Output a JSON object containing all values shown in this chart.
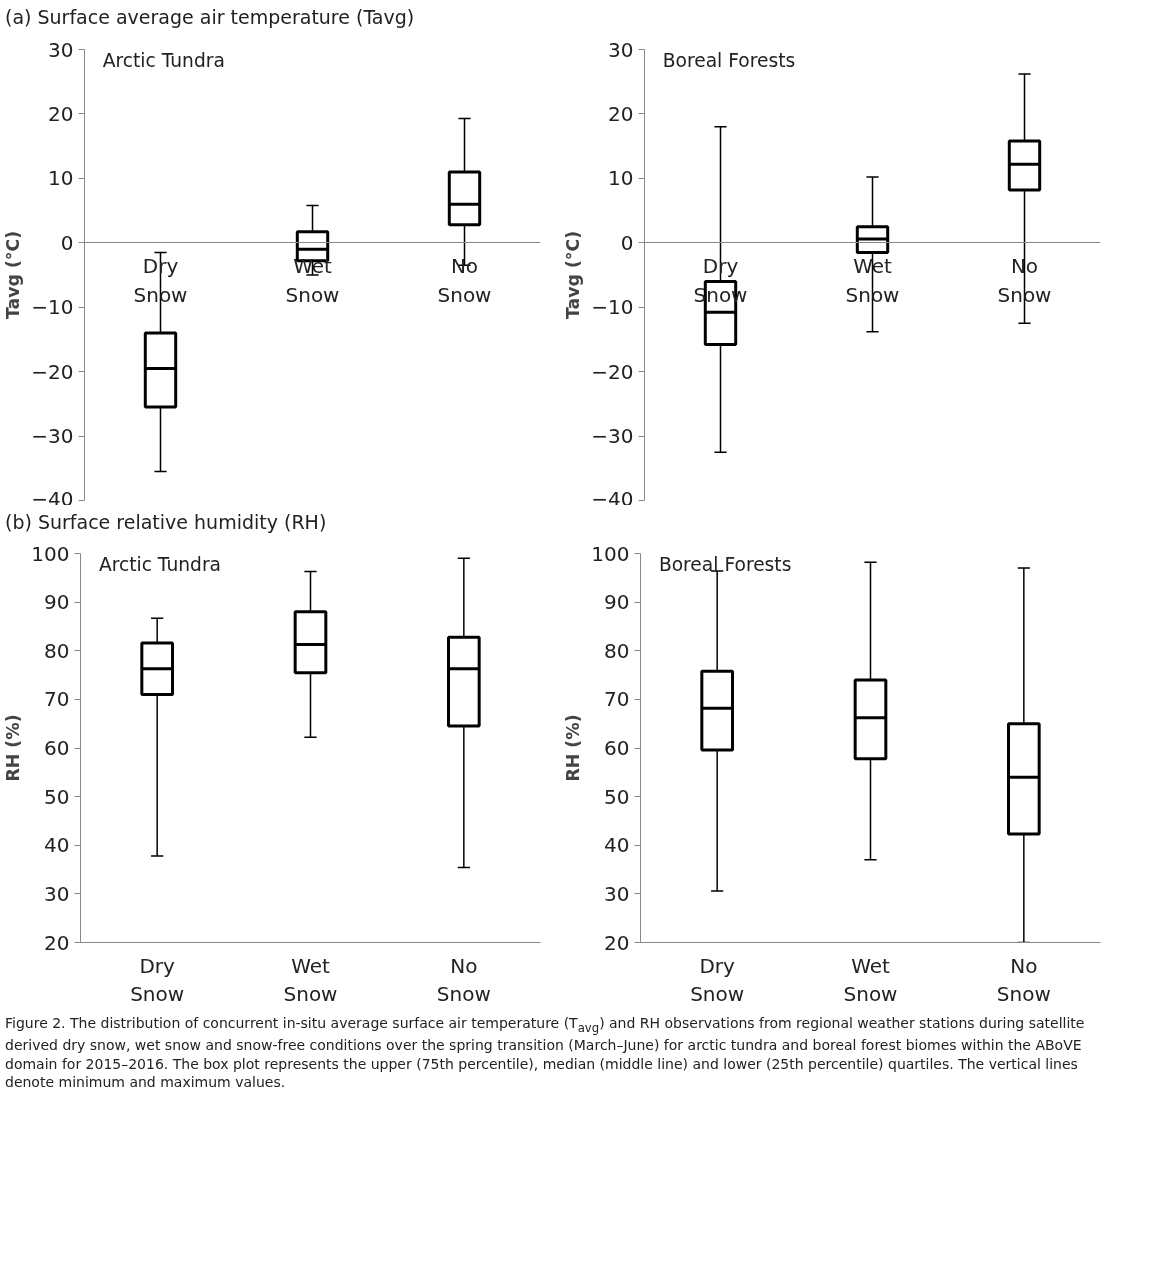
{
  "chart_data": [
    {
      "type": "box",
      "title": "Arctic Tundra",
      "ylabel": "Tavg (°C)",
      "annotations": [
        "(a) Surface average air temperature (Tavg)"
      ],
      "categories": [
        "Dry Snow",
        "Wet Snow",
        "No Snow"
      ],
      "ylim": [
        -40,
        30
      ],
      "yticks": [
        -40,
        -30,
        -20,
        -10,
        0,
        10,
        20,
        30
      ],
      "grid": false,
      "boxes": [
        {
          "low": -35.5,
          "q1": -25.5,
          "median": -19.5,
          "q3": -14,
          "high": -1.5
        },
        {
          "low": -5,
          "q1": -2.8,
          "median": -1,
          "q3": 1.7,
          "high": 5.8
        },
        {
          "low": -3.5,
          "q1": 2.8,
          "median": 6,
          "q3": 11,
          "high": 19.3
        }
      ]
    },
    {
      "type": "box",
      "title": "Boreal Forests",
      "ylabel": "Tavg (°C)",
      "categories": [
        "Dry Snow",
        "Wet Snow",
        "No Snow"
      ],
      "ylim": [
        -40,
        30
      ],
      "yticks": [
        -40,
        -30,
        -20,
        -10,
        0,
        10,
        20,
        30
      ],
      "grid": false,
      "boxes": [
        {
          "low": -32.5,
          "q1": -15.8,
          "median": -10.8,
          "q3": -6,
          "high": 18
        },
        {
          "low": -13.8,
          "q1": -1.5,
          "median": 0.6,
          "q3": 2.5,
          "high": 10.2
        },
        {
          "low": -12.5,
          "q1": 8.2,
          "median": 12.2,
          "q3": 15.8,
          "high": 26.2
        }
      ]
    },
    {
      "type": "box",
      "title": "Arctic Tundra",
      "ylabel": "RH (%)",
      "annotations": [
        "(b) Surface relative humidity (RH)"
      ],
      "categories": [
        "Dry Snow",
        "Wet Snow",
        "No Snow"
      ],
      "ylim": [
        20,
        100
      ],
      "yticks": [
        20,
        30,
        40,
        50,
        60,
        70,
        80,
        90,
        100
      ],
      "grid": false,
      "boxes": [
        {
          "low": 37.8,
          "q1": 71,
          "median": 76.3,
          "q3": 81.6,
          "high": 86.7
        },
        {
          "low": 62.2,
          "q1": 75.5,
          "median": 81.3,
          "q3": 88,
          "high": 96.3
        },
        {
          "low": 35.4,
          "q1": 64.5,
          "median": 76.3,
          "q3": 82.8,
          "high": 99
        }
      ]
    },
    {
      "type": "box",
      "title": "Boreal Forests",
      "ylabel": "RH (%)",
      "annotations": [
        "Figure 2. The distribution of concurrent in-situ average surface air temperature (T$_{avg}$) and RH observations from regional weather stations during satellite derived dry snow, wet snow and snow-free conditions over the spring transition (March–June) for arctic tundra and boreal forest biomes within the ABoVE domain for 2015–2016. The box plot represents the upper (75th percentile), median (middle line) and lower (25th percentile) quartiles. The vertical lines denote minimum and maximum values."
      ],
      "categories": [
        "Dry Snow",
        "Wet Snow",
        "No Snow"
      ],
      "ylim": [
        20,
        100
      ],
      "yticks": [
        20,
        30,
        40,
        50,
        60,
        70,
        80,
        90,
        100
      ],
      "grid": false,
      "boxes": [
        {
          "low": 30.6,
          "q1": 59.6,
          "median": 68.2,
          "q3": 75.8,
          "high": 96.4
        },
        {
          "low": 37,
          "q1": 57.8,
          "median": 66.2,
          "q3": 74,
          "high": 98.2
        },
        {
          "low": 20,
          "q1": 42.3,
          "median": 54,
          "q3": 65,
          "high": 97
        }
      ]
    }
  ]
}
